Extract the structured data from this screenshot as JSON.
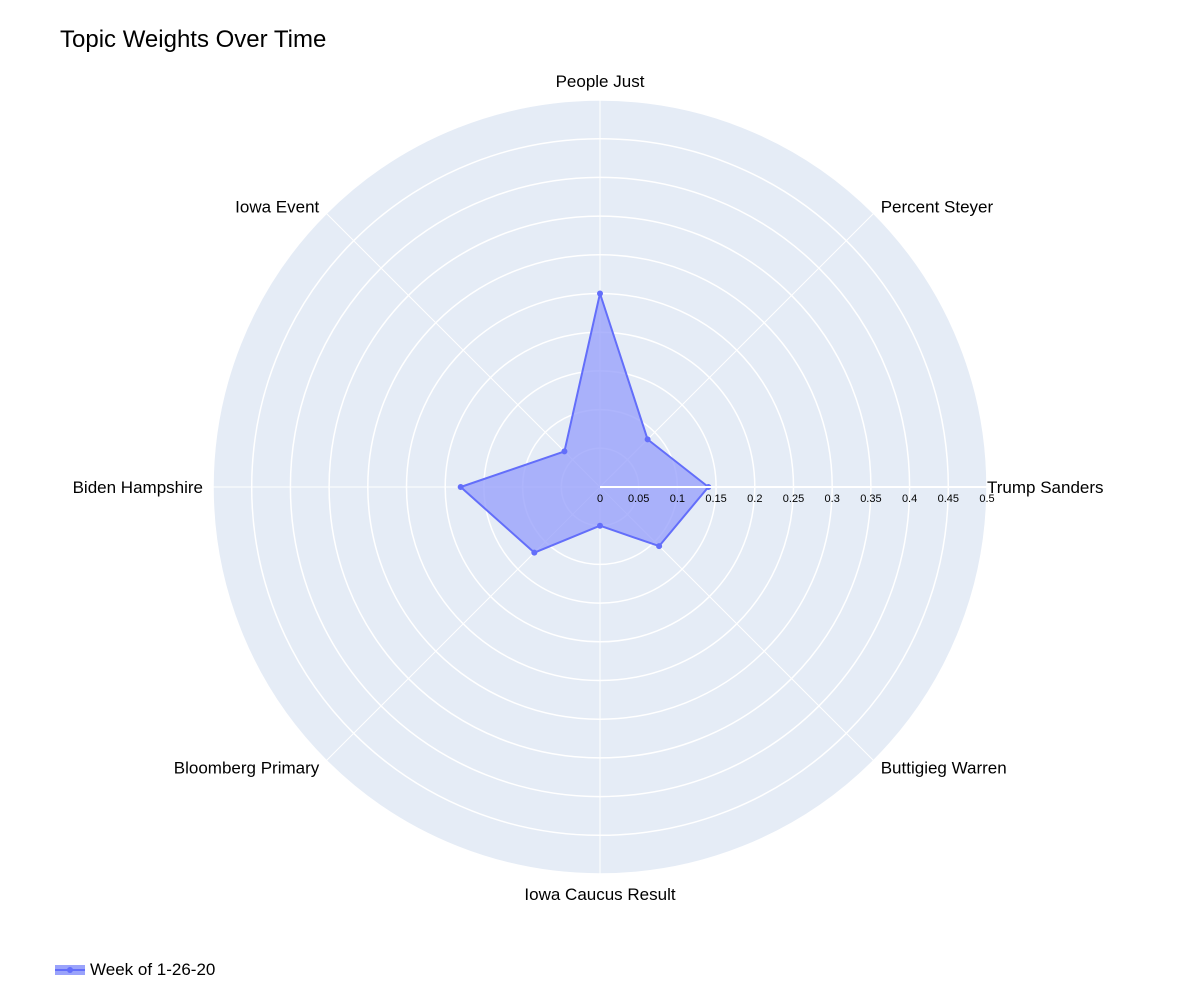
{
  "chart_data": {
    "type": "radar",
    "title": "Topic Weights Over Time",
    "categories": [
      "Trump Sanders",
      "Percent Steyer",
      "People Just",
      "Iowa Event",
      "Biden Hampshire",
      "Bloomberg Primary",
      "Iowa Caucus Result",
      "Buttigieg Warren"
    ],
    "series": [
      {
        "name": "Week of 1-26-20",
        "values": [
          0.14,
          0.087,
          0.25,
          0.065,
          0.18,
          0.12,
          0.05,
          0.108
        ]
      }
    ],
    "radial_range": [
      0,
      0.5
    ],
    "radial_ticks": [
      "0",
      "0.05",
      "0.1",
      "0.15",
      "0.2",
      "0.25",
      "0.3",
      "0.35",
      "0.4",
      "0.45",
      "0.5"
    ],
    "grid": true,
    "legend_position": "bottom-left",
    "colors": {
      "polar_bg": "#e5ecf6",
      "grid": "#ffffff",
      "series_line": "#636efa",
      "series_fill": "#9aa3fb"
    }
  }
}
